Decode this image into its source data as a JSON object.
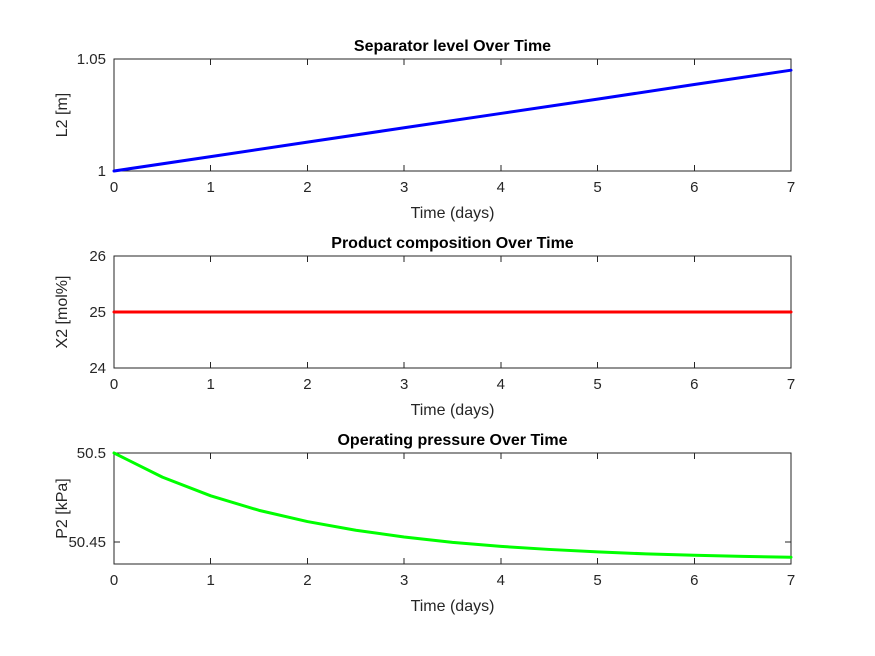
{
  "chart_data": [
    {
      "type": "line",
      "title": "Separator level Over Time",
      "xlabel": "Time (days)",
      "ylabel": "L2 [m]",
      "xlim": [
        0,
        7
      ],
      "ylim": [
        1,
        1.05
      ],
      "xticks": [
        0,
        1,
        2,
        3,
        4,
        5,
        6,
        7
      ],
      "yticks": [
        1,
        1.05
      ],
      "ytick_labels": [
        "1",
        "1.05"
      ],
      "grid": false,
      "color": "#0000ff",
      "series": [
        {
          "x": [
            0,
            1,
            2,
            3,
            4,
            5,
            6,
            7
          ],
          "y": [
            1.0,
            1.0064,
            1.0129,
            1.0193,
            1.0257,
            1.0321,
            1.0386,
            1.045
          ]
        }
      ]
    },
    {
      "type": "line",
      "title": "Product composition Over Time",
      "xlabel": "Time (days)",
      "ylabel": "X2 [mol%]",
      "xlim": [
        0,
        7
      ],
      "ylim": [
        24,
        26
      ],
      "xticks": [
        0,
        1,
        2,
        3,
        4,
        5,
        6,
        7
      ],
      "yticks": [
        24,
        25,
        26
      ],
      "ytick_labels": [
        "24",
        "25",
        "26"
      ],
      "grid": false,
      "color": "#ff0000",
      "series": [
        {
          "x": [
            0,
            1,
            2,
            3,
            4,
            5,
            6,
            7
          ],
          "y": [
            25,
            25,
            25,
            25,
            25,
            25,
            25,
            25
          ]
        }
      ]
    },
    {
      "type": "line",
      "title": "Operating pressure Over Time",
      "xlabel": "Time (days)",
      "ylabel": "P2 [kPa]",
      "xlim": [
        0,
        7
      ],
      "ylim": [
        50.4375,
        50.5
      ],
      "xticks": [
        0,
        1,
        2,
        3,
        4,
        5,
        6,
        7
      ],
      "yticks": [
        50.45,
        50.5
      ],
      "ytick_labels": [
        "50.45",
        "50.5"
      ],
      "grid": false,
      "color": "#00ff00",
      "series": [
        {
          "x": [
            0,
            0.5,
            1,
            1.5,
            2,
            2.5,
            3,
            3.5,
            4,
            4.5,
            5,
            5.5,
            6,
            6.5,
            7
          ],
          "y": [
            50.5,
            50.4864,
            50.4759,
            50.4677,
            50.4614,
            50.4565,
            50.4527,
            50.4497,
            50.4474,
            50.4457,
            50.4443,
            50.4432,
            50.4424,
            50.4418,
            50.4413
          ]
        }
      ]
    }
  ]
}
